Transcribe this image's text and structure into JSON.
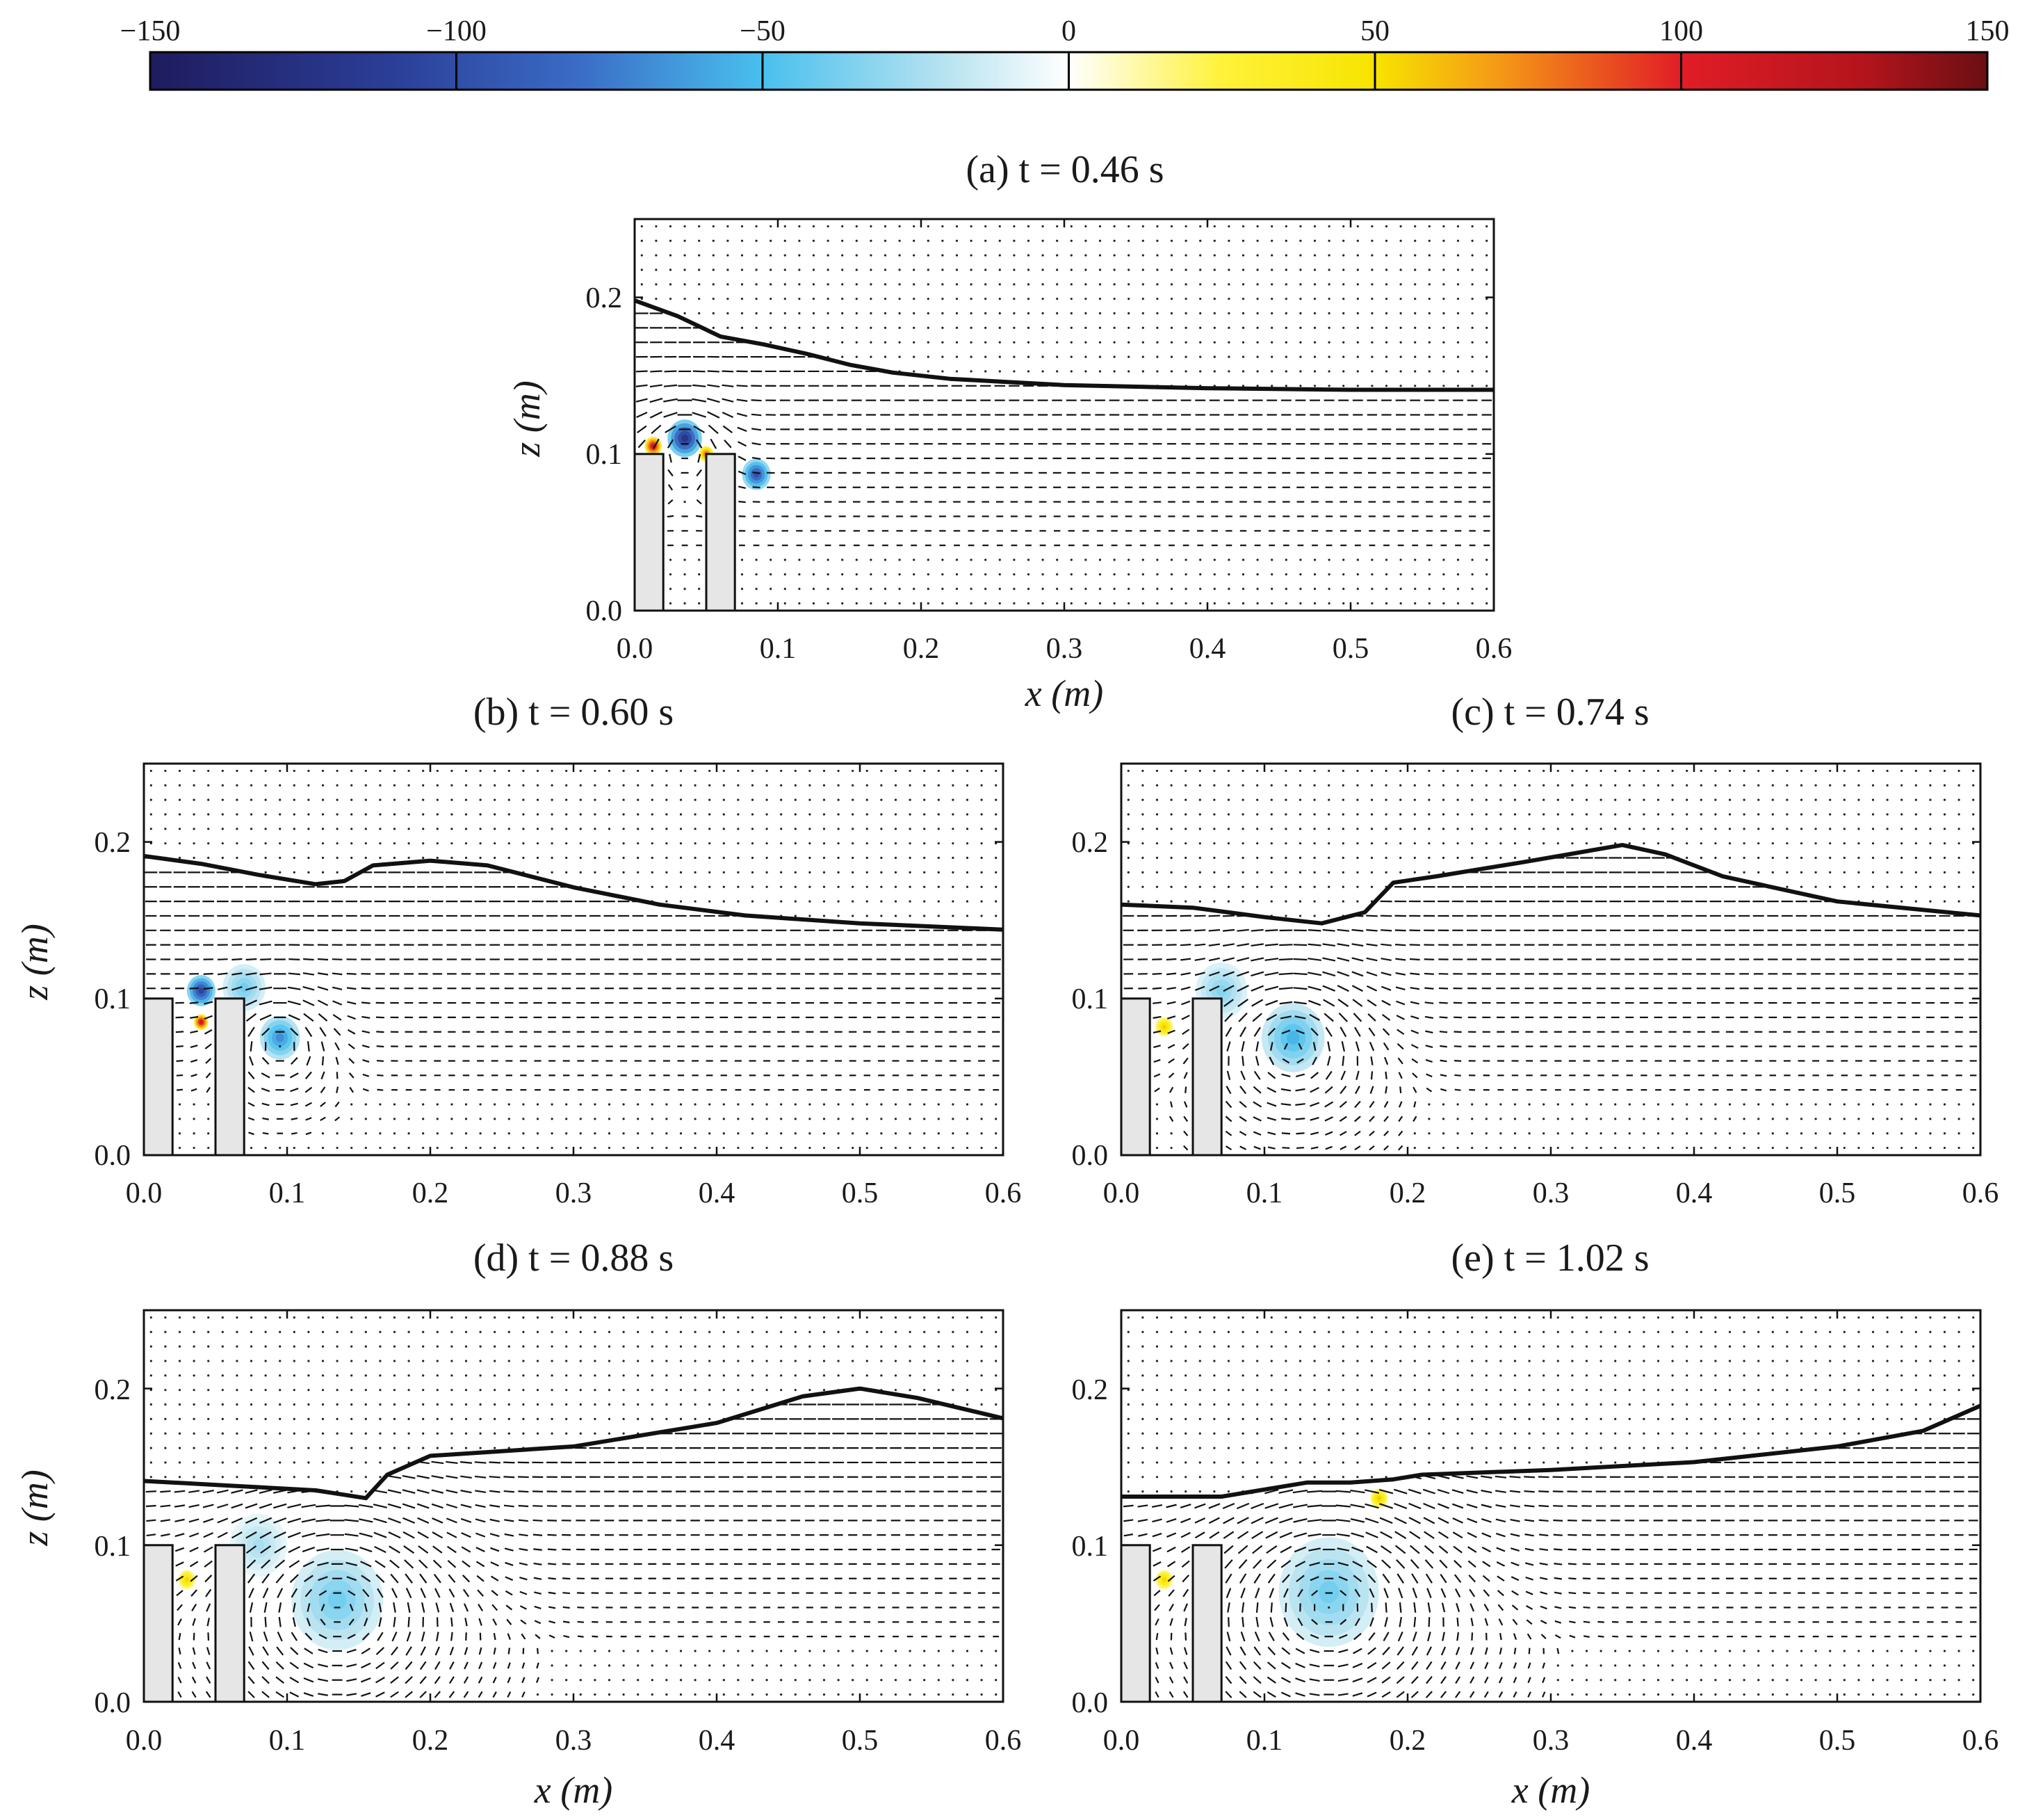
{
  "chart_data": {
    "type": "heatmap",
    "colorbar": {
      "min": -150,
      "max": 150,
      "ticks": [
        "−150",
        "−100",
        "−50",
        "0",
        "50",
        "100",
        "150"
      ],
      "tick_values": [
        -150,
        -100,
        -50,
        0,
        50,
        100,
        150
      ],
      "colors": [
        {
          "value": -150,
          "color": "#1f1b5e"
        },
        {
          "value": -110,
          "color": "#2b3f98"
        },
        {
          "value": -80,
          "color": "#3a6cc6"
        },
        {
          "value": -50,
          "color": "#49c0ee"
        },
        {
          "value": -20,
          "color": "#b8e3f0"
        },
        {
          "value": 0,
          "color": "#ffffff"
        },
        {
          "value": 25,
          "color": "#fff23a"
        },
        {
          "value": 50,
          "color": "#f7e400"
        },
        {
          "value": 70,
          "color": "#f59a16"
        },
        {
          "value": 100,
          "color": "#e11d26"
        },
        {
          "value": 130,
          "color": "#b3141c"
        },
        {
          "value": 150,
          "color": "#6a0f13"
        }
      ]
    },
    "panels": [
      {
        "id": "a",
        "title": "(a) t = 0.46 s",
        "xlabel": "x (m)",
        "ylabel": "z (m)",
        "xlim": [
          0,
          0.6
        ],
        "ylim": [
          0,
          0.25
        ],
        "xticks": [
          "0.0",
          "0.1",
          "0.2",
          "0.3",
          "0.4",
          "0.5",
          "0.6"
        ],
        "yticks": [
          "0.0",
          "0.1",
          "0.2"
        ],
        "free_surface": [
          [
            0,
            0.198
          ],
          [
            0.03,
            0.188
          ],
          [
            0.06,
            0.175
          ],
          [
            0.09,
            0.17
          ],
          [
            0.12,
            0.164
          ],
          [
            0.15,
            0.157
          ],
          [
            0.18,
            0.152
          ],
          [
            0.22,
            0.148
          ],
          [
            0.26,
            0.146
          ],
          [
            0.3,
            0.144
          ],
          [
            0.4,
            0.142
          ],
          [
            0.5,
            0.141
          ],
          [
            0.6,
            0.141
          ]
        ],
        "vortices": [
          {
            "x": 0.035,
            "z": 0.11,
            "s": 0.012,
            "v": -125
          },
          {
            "x": 0.085,
            "z": 0.087,
            "s": 0.01,
            "v": -100
          },
          {
            "x": 0.013,
            "z": 0.105,
            "s": 0.006,
            "v": 120
          },
          {
            "x": 0.05,
            "z": 0.1,
            "s": 0.005,
            "v": 90
          }
        ]
      },
      {
        "id": "b",
        "title": "(b) t = 0.60 s",
        "xlabel": "",
        "ylabel": "z (m)",
        "xlim": [
          0,
          0.6
        ],
        "ylim": [
          0,
          0.25
        ],
        "xticks": [
          "0.0",
          "0.1",
          "0.2",
          "0.3",
          "0.4",
          "0.5",
          "0.6"
        ],
        "yticks": [
          "0.0",
          "0.1",
          "0.2"
        ],
        "free_surface": [
          [
            0,
            0.191
          ],
          [
            0.04,
            0.186
          ],
          [
            0.08,
            0.179
          ],
          [
            0.12,
            0.173
          ],
          [
            0.14,
            0.175
          ],
          [
            0.16,
            0.185
          ],
          [
            0.2,
            0.188
          ],
          [
            0.24,
            0.185
          ],
          [
            0.3,
            0.171
          ],
          [
            0.36,
            0.16
          ],
          [
            0.42,
            0.153
          ],
          [
            0.5,
            0.148
          ],
          [
            0.6,
            0.144
          ]
        ],
        "vortices": [
          {
            "x": 0.095,
            "z": 0.075,
            "s": 0.014,
            "v": -70
          },
          {
            "x": 0.04,
            "z": 0.105,
            "s": 0.01,
            "v": -110
          },
          {
            "x": 0.04,
            "z": 0.085,
            "s": 0.005,
            "v": 120
          },
          {
            "x": 0.07,
            "z": 0.107,
            "s": 0.015,
            "v": -40
          }
        ]
      },
      {
        "id": "c",
        "title": "(c) t = 0.74 s",
        "xlabel": "",
        "ylabel": "",
        "xlim": [
          0,
          0.6
        ],
        "ylim": [
          0,
          0.25
        ],
        "xticks": [
          "0.0",
          "0.1",
          "0.2",
          "0.3",
          "0.4",
          "0.5",
          "0.6"
        ],
        "yticks": [
          "0.0",
          "0.1",
          "0.2"
        ],
        "free_surface": [
          [
            0,
            0.16
          ],
          [
            0.05,
            0.158
          ],
          [
            0.1,
            0.152
          ],
          [
            0.14,
            0.148
          ],
          [
            0.17,
            0.155
          ],
          [
            0.19,
            0.174
          ],
          [
            0.22,
            0.178
          ],
          [
            0.28,
            0.187
          ],
          [
            0.35,
            0.198
          ],
          [
            0.38,
            0.192
          ],
          [
            0.42,
            0.178
          ],
          [
            0.5,
            0.162
          ],
          [
            0.6,
            0.153
          ]
        ],
        "vortices": [
          {
            "x": 0.12,
            "z": 0.075,
            "s": 0.022,
            "v": -55
          },
          {
            "x": 0.03,
            "z": 0.082,
            "s": 0.006,
            "v": 60
          },
          {
            "x": 0.07,
            "z": 0.105,
            "s": 0.018,
            "v": -35
          }
        ]
      },
      {
        "id": "d",
        "title": "(d) t = 0.88 s",
        "xlabel": "x (m)",
        "ylabel": "z (m)",
        "xlim": [
          0,
          0.6
        ],
        "ylim": [
          0,
          0.25
        ],
        "xticks": [
          "0.0",
          "0.1",
          "0.2",
          "0.3",
          "0.4",
          "0.5",
          "0.6"
        ],
        "yticks": [
          "0.0",
          "0.1",
          "0.2"
        ],
        "free_surface": [
          [
            0,
            0.141
          ],
          [
            0.06,
            0.138
          ],
          [
            0.12,
            0.135
          ],
          [
            0.155,
            0.13
          ],
          [
            0.17,
            0.145
          ],
          [
            0.2,
            0.157
          ],
          [
            0.3,
            0.163
          ],
          [
            0.4,
            0.178
          ],
          [
            0.46,
            0.195
          ],
          [
            0.5,
            0.2
          ],
          [
            0.54,
            0.194
          ],
          [
            0.6,
            0.181
          ]
        ],
        "vortices": [
          {
            "x": 0.135,
            "z": 0.065,
            "s": 0.032,
            "v": -40
          },
          {
            "x": 0.03,
            "z": 0.078,
            "s": 0.006,
            "v": 55
          },
          {
            "x": 0.08,
            "z": 0.1,
            "s": 0.02,
            "v": -25
          }
        ]
      },
      {
        "id": "e",
        "title": "(e) t = 1.02 s",
        "xlabel": "x (m)",
        "ylabel": "",
        "xlim": [
          0,
          0.6
        ],
        "ylim": [
          0,
          0.25
        ],
        "xticks": [
          "0.0",
          "0.1",
          "0.2",
          "0.3",
          "0.4",
          "0.5",
          "0.6"
        ],
        "yticks": [
          "0.0",
          "0.1",
          "0.2"
        ],
        "free_surface": [
          [
            0,
            0.131
          ],
          [
            0.07,
            0.131
          ],
          [
            0.13,
            0.14
          ],
          [
            0.16,
            0.14
          ],
          [
            0.19,
            0.142
          ],
          [
            0.21,
            0.145
          ],
          [
            0.3,
            0.148
          ],
          [
            0.4,
            0.153
          ],
          [
            0.5,
            0.163
          ],
          [
            0.56,
            0.173
          ],
          [
            0.6,
            0.189
          ]
        ],
        "vortices": [
          {
            "x": 0.145,
            "z": 0.07,
            "s": 0.035,
            "v": -40
          },
          {
            "x": 0.03,
            "z": 0.078,
            "s": 0.006,
            "v": 55
          },
          {
            "x": 0.18,
            "z": 0.13,
            "s": 0.006,
            "v": 60
          }
        ]
      }
    ],
    "structure": {
      "blocks": [
        {
          "x0": 0.0,
          "x1": 0.02,
          "z_top": 0.1
        },
        {
          "x0": 0.05,
          "x1": 0.07,
          "z_top": 0.1
        }
      ]
    }
  }
}
